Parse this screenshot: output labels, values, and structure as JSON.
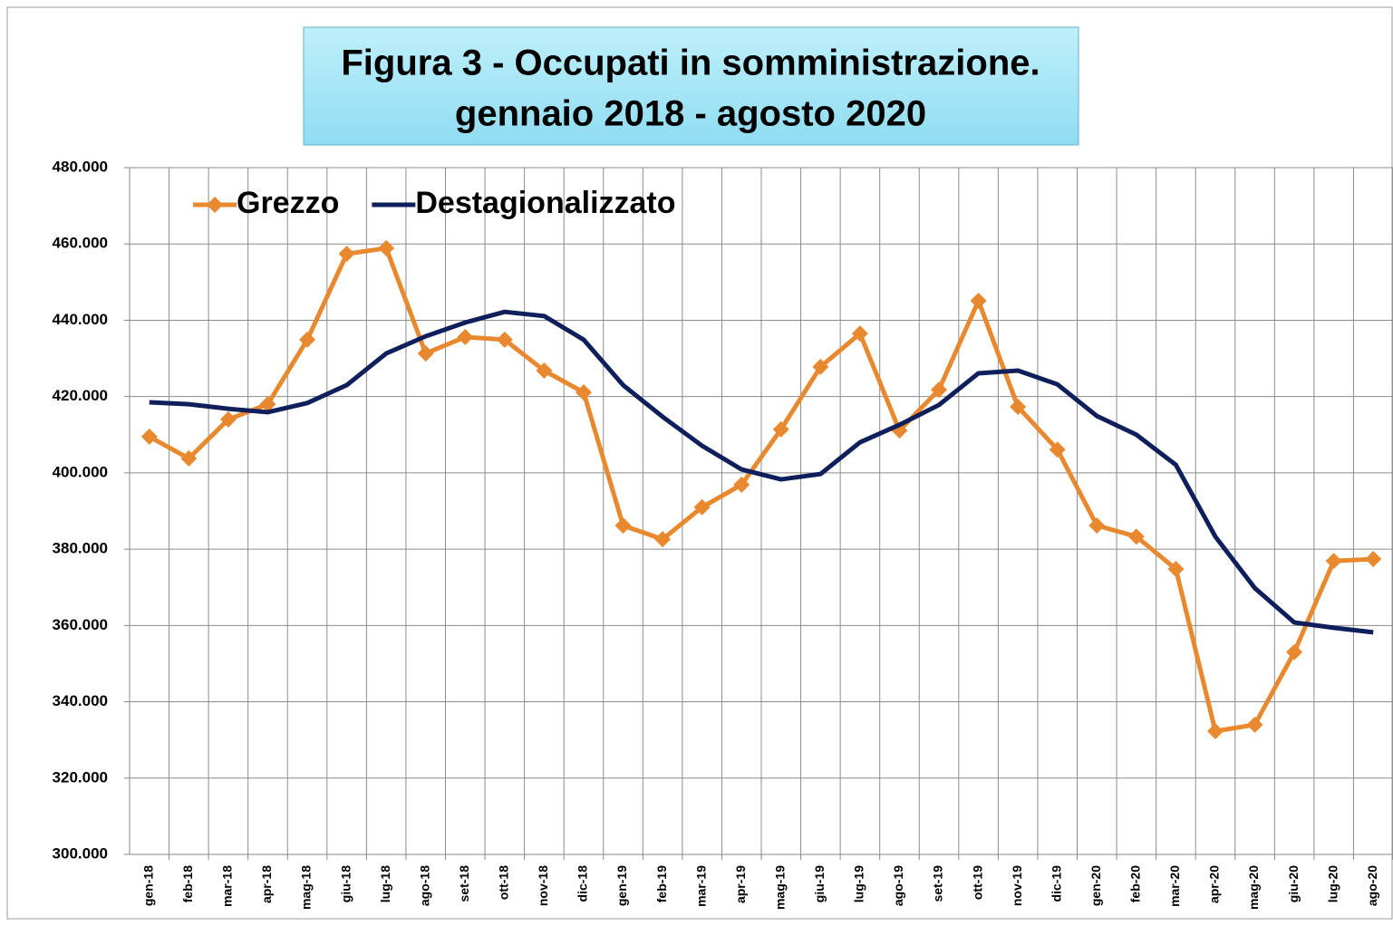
{
  "chart_data": {
    "type": "line",
    "title": "Figura 3 - Occupati in somministrazione.",
    "subtitle": "gennaio 2018 - agosto 2020",
    "categories": [
      "gen-18",
      "feb-18",
      "mar-18",
      "apr-18",
      "mag-18",
      "giu-18",
      "lug-18",
      "ago-18",
      "set-18",
      "ott-18",
      "nov-18",
      "dic-18",
      "gen-19",
      "feb-19",
      "mar-19",
      "apr-19",
      "mag-19",
      "giu-19",
      "lug-19",
      "ago-19",
      "set-19",
      "ott-19",
      "nov-19",
      "dic-19",
      "gen-20",
      "feb-20",
      "mar-20",
      "apr-20",
      "mag-20",
      "giu-20",
      "lug-20",
      "ago-20"
    ],
    "series": [
      {
        "name": "Grezzo",
        "color": "#e8892f",
        "marker": "diamond",
        "values": [
          409500,
          403800,
          414000,
          418000,
          434900,
          457400,
          458900,
          431300,
          435600,
          434900,
          426800,
          421100,
          386200,
          382600,
          391000,
          396900,
          411400,
          427800,
          436500,
          411100,
          421800,
          445100,
          417300,
          406100,
          386200,
          383300,
          374800,
          332300,
          334000,
          353000,
          376900,
          377400
        ]
      },
      {
        "name": "Destagionalizzato",
        "color": "#0f1f5c",
        "marker": "none",
        "values": [
          418500,
          418000,
          416800,
          415900,
          418300,
          423000,
          431300,
          435800,
          439400,
          442200,
          441100,
          434900,
          423000,
          414700,
          407100,
          400900,
          398300,
          399700,
          408000,
          412600,
          417800,
          426100,
          426800,
          423200,
          414900,
          410000,
          402100,
          383300,
          369800,
          360800,
          359400,
          358200
        ]
      }
    ],
    "ylim": [
      300000,
      480000
    ],
    "yticks": [
      {
        "value": 300000,
        "label": "300.000"
      },
      {
        "value": 320000,
        "label": "320.000"
      },
      {
        "value": 340000,
        "label": "340.000"
      },
      {
        "value": 360000,
        "label": "360.000"
      },
      {
        "value": 380000,
        "label": "380.000"
      },
      {
        "value": 400000,
        "label": "400.000"
      },
      {
        "value": 420000,
        "label": "420.000"
      },
      {
        "value": 440000,
        "label": "440.000"
      },
      {
        "value": 460000,
        "label": "460.000"
      },
      {
        "value": 480000,
        "label": "480.000"
      }
    ],
    "grid": true,
    "legend": "top-left"
  }
}
